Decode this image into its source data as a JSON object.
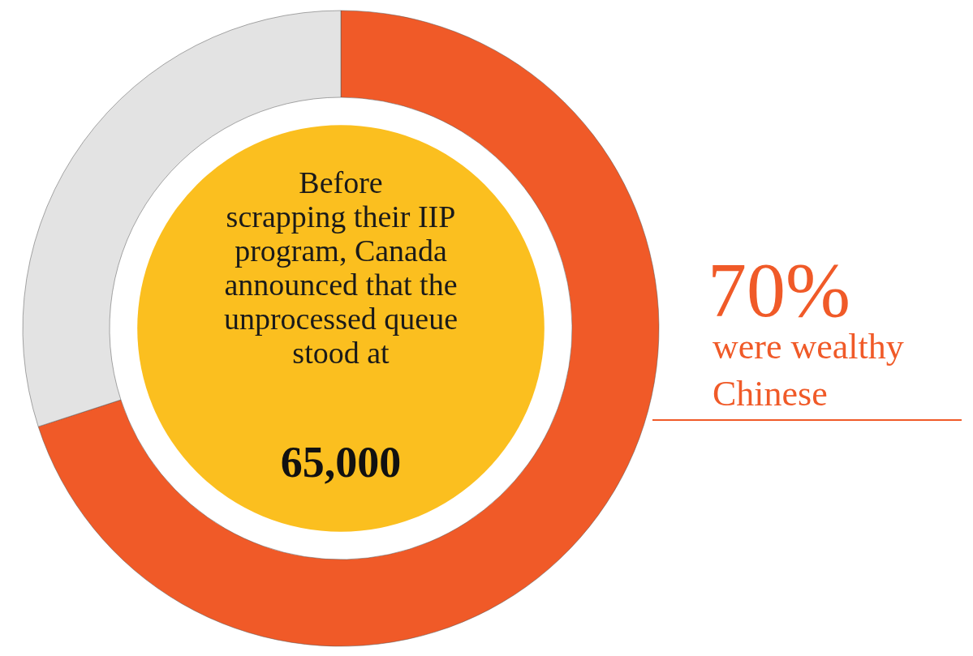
{
  "chart_data": {
    "type": "donut",
    "categories": [
      "were wealthy\nChinese",
      null
    ],
    "values": [
      70,
      30
    ],
    "colors": [
      "#f05a28",
      "#e3e3e3"
    ],
    "value_labels": [
      "70%",
      null
    ],
    "annotations": [
      "Before\nscrapping their IIP\nprogram, Canada\nannounced that the\nunprocessed queue\nstood at",
      "65,000"
    ]
  }
}
